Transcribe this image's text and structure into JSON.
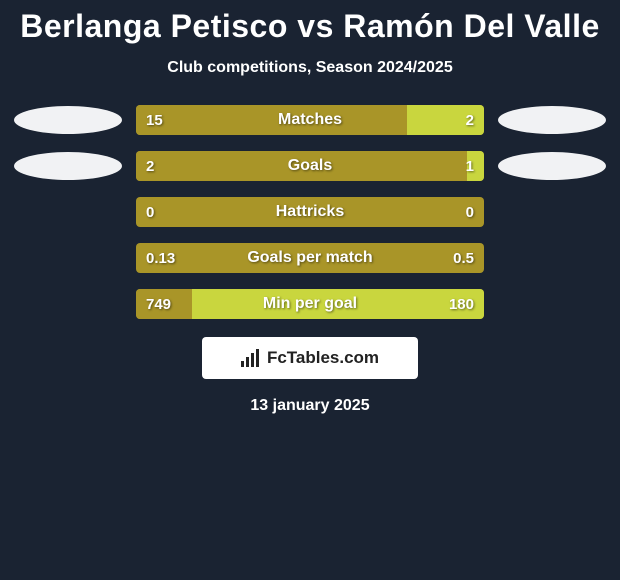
{
  "header": {
    "title": "Berlanga Petisco vs Ramón Del Valle",
    "subtitle": "Club competitions, Season 2024/2025"
  },
  "colors": {
    "background": "#1a2332",
    "left_bar": "#a99528",
    "right_bar": "#c9d63e",
    "neutral_bar": "#a99528",
    "badge_bg": "#f1f2f4",
    "text": "#ffffff"
  },
  "stats": [
    {
      "label": "Matches",
      "left_value": "15",
      "right_value": "2",
      "left_pct": 78,
      "right_pct": 22,
      "show_badges": true
    },
    {
      "label": "Goals",
      "left_value": "2",
      "right_value": "1",
      "left_pct": 12,
      "right_pct": 5,
      "show_badges": true
    },
    {
      "label": "Hattricks",
      "left_value": "0",
      "right_value": "0",
      "left_pct": 0,
      "right_pct": 0,
      "show_badges": false
    },
    {
      "label": "Goals per match",
      "left_value": "0.13",
      "right_value": "0.5",
      "left_pct": 0,
      "right_pct": 0,
      "show_badges": false
    },
    {
      "label": "Min per goal",
      "left_value": "749",
      "right_value": "180",
      "left_pct": 16,
      "right_pct": 84,
      "show_badges": false
    }
  ],
  "footer": {
    "logo_text": "FcTables.com",
    "date": "13 january 2025"
  }
}
